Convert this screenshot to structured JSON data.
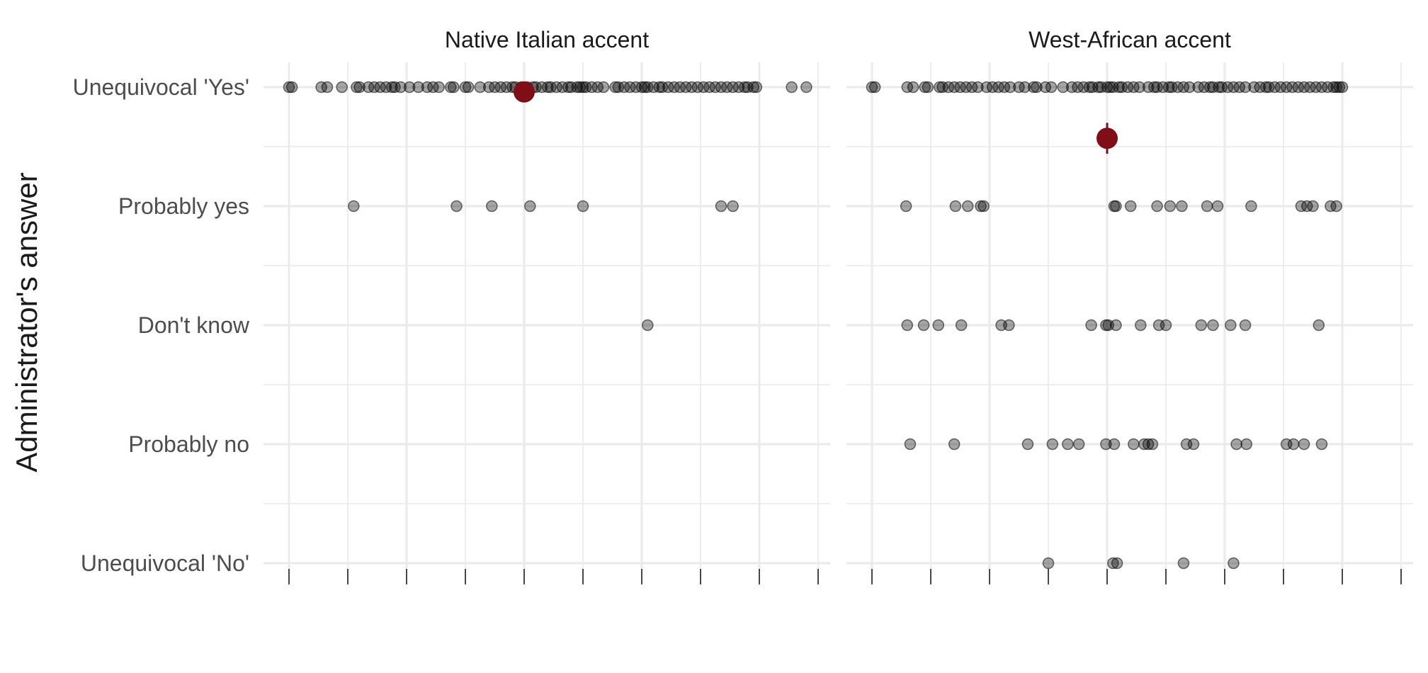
{
  "chart_data": {
    "type": "scatter",
    "ylabel": "Administrator's answer",
    "xlabel": "",
    "categories": [
      "Unequivocal 'Yes'",
      "Probably yes",
      "Don't know",
      "Probably no",
      "Unequivocal 'No'"
    ],
    "x_ticks": [
      0,
      1,
      2,
      3,
      4,
      5,
      6,
      7,
      8,
      9
    ],
    "xlim": [
      -0.45,
      9.2
    ],
    "grid": "on",
    "colors": {
      "points": "#000000",
      "mean": "#7f0e16",
      "grid": "#ebebeb"
    },
    "facets": [
      {
        "title": "Native Italian accent",
        "mean": {
          "x": 4.0,
          "y": 0.04,
          "error": [
            0.0,
            0.08
          ]
        },
        "series": [
          {
            "category": "Unequivocal 'Yes'",
            "x": [
              0.0,
              0.05,
              0.55,
              0.65,
              0.9,
              1.15,
              1.2,
              1.35,
              1.45,
              1.55,
              1.65,
              1.75,
              1.8,
              1.9,
              2.05,
              2.2,
              2.35,
              2.45,
              2.55,
              2.75,
              2.8,
              3.0,
              3.05,
              3.25,
              3.4,
              3.5,
              3.6,
              3.7,
              3.8,
              3.85,
              3.95,
              4.05,
              4.15,
              4.2,
              4.3,
              4.4,
              4.45,
              4.55,
              4.65,
              4.75,
              4.8,
              4.9,
              4.95,
              5.0,
              5.05,
              5.15,
              5.25,
              5.35,
              5.55,
              5.6,
              5.7,
              5.8,
              5.9,
              6.0,
              6.05,
              6.1,
              6.2,
              6.3,
              6.35,
              6.45,
              6.55,
              6.65,
              6.75,
              6.85,
              6.95,
              7.05,
              7.15,
              7.25,
              7.35,
              7.45,
              7.55,
              7.65,
              7.75,
              7.8,
              7.9,
              7.95,
              8.55,
              8.8
            ]
          },
          {
            "category": "Probably yes",
            "x": [
              1.1,
              2.85,
              3.45,
              4.1,
              5.0,
              7.35,
              7.55
            ]
          },
          {
            "category": "Don't know",
            "x": [
              6.1
            ]
          },
          {
            "category": "Probably no",
            "x": []
          },
          {
            "category": "Unequivocal 'No'",
            "x": []
          }
        ]
      },
      {
        "title": "West-African accent",
        "mean": {
          "x": 4.0,
          "y": 0.43,
          "error": [
            0.3,
            0.56
          ]
        },
        "series": [
          {
            "category": "Unequivocal 'Yes'",
            "x": [
              0.0,
              0.05,
              0.6,
              0.7,
              0.9,
              0.95,
              1.15,
              1.2,
              1.3,
              1.4,
              1.5,
              1.6,
              1.7,
              1.8,
              1.95,
              2.05,
              2.15,
              2.25,
              2.35,
              2.5,
              2.6,
              2.75,
              2.8,
              2.95,
              3.05,
              3.25,
              3.4,
              3.5,
              3.6,
              3.7,
              3.75,
              3.85,
              3.9,
              4.0,
              4.05,
              4.1,
              4.2,
              4.25,
              4.35,
              4.45,
              4.55,
              4.7,
              4.8,
              4.85,
              4.95,
              5.05,
              5.1,
              5.2,
              5.3,
              5.4,
              5.55,
              5.65,
              5.75,
              5.8,
              5.9,
              5.95,
              6.05,
              6.15,
              6.25,
              6.35,
              6.5,
              6.6,
              6.7,
              6.75,
              6.85,
              6.95,
              7.05,
              7.15,
              7.25,
              7.35,
              7.45,
              7.55,
              7.65,
              7.75,
              7.85,
              7.9,
              7.95,
              8.0
            ]
          },
          {
            "category": "Probably yes",
            "x": [
              0.58,
              1.42,
              1.63,
              1.85,
              1.9,
              4.12,
              4.15,
              4.4,
              4.85,
              5.07,
              5.27,
              5.7,
              5.88,
              6.45,
              7.3,
              7.4,
              7.5,
              7.8,
              7.9
            ]
          },
          {
            "category": "Don't know",
            "x": [
              0.6,
              0.88,
              1.13,
              1.52,
              2.2,
              2.33,
              3.73,
              3.98,
              4.02,
              4.15,
              4.57,
              4.88,
              5.0,
              5.6,
              5.8,
              6.1,
              6.35,
              7.6
            ]
          },
          {
            "category": "Probably no",
            "x": [
              0.65,
              1.4,
              2.65,
              3.07,
              3.33,
              3.52,
              3.98,
              4.12,
              4.45,
              4.63,
              4.7,
              4.77,
              5.35,
              5.47,
              6.2,
              6.37,
              7.05,
              7.17,
              7.35,
              7.65
            ]
          },
          {
            "category": "Unequivocal 'No'",
            "x": [
              3.0,
              4.1,
              4.17,
              5.3,
              6.15
            ]
          }
        ]
      }
    ]
  }
}
